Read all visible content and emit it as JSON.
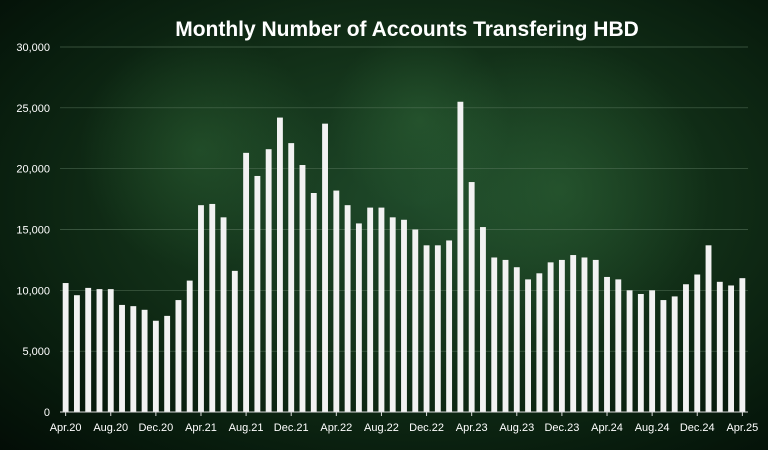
{
  "chart_data": {
    "type": "bar",
    "title": "Monthly Number of Accounts Transfering HBD",
    "xlabel": "",
    "ylabel": "",
    "ylim": [
      0,
      30000
    ],
    "yticks": [
      0,
      5000,
      10000,
      15000,
      20000,
      25000,
      30000
    ],
    "ytick_labels": [
      "0",
      "5,000",
      "10,000",
      "15,000",
      "20,000",
      "25,000",
      "30,000"
    ],
    "grid": true,
    "bar_color": "#f2f2f2",
    "categories": [
      "Apr.20",
      "May.20",
      "Jun.20",
      "Jul.20",
      "Aug.20",
      "Sep.20",
      "Oct.20",
      "Nov.20",
      "Dec.20",
      "Jan.21",
      "Feb.21",
      "Mar.21",
      "Apr.21",
      "May.21",
      "Jun.21",
      "Jul.21",
      "Aug.21",
      "Sep.21",
      "Oct.21",
      "Nov.21",
      "Dec.21",
      "Jan.22",
      "Feb.22",
      "Mar.22",
      "Apr.22",
      "May.22",
      "Jun.22",
      "Jul.22",
      "Aug.22",
      "Sep.22",
      "Oct.22",
      "Nov.22",
      "Dec.22",
      "Jan.23",
      "Feb.23",
      "Mar.23",
      "Apr.23",
      "May.23",
      "Jun.23",
      "Jul.23",
      "Aug.23",
      "Sep.23",
      "Oct.23",
      "Nov.23",
      "Dec.23",
      "Jan.24",
      "Feb.24",
      "Mar.24",
      "Apr.24",
      "May.24",
      "Jun.24",
      "Jul.24",
      "Aug.24",
      "Sep.24",
      "Oct.24",
      "Nov.24",
      "Dec.24",
      "Jan.25",
      "Feb.25",
      "Mar.25",
      "Apr.25"
    ],
    "visible_xtick_labels": [
      "Apr.20",
      "Aug.20",
      "Dec.20",
      "Apr.21",
      "Aug.21",
      "Dec.21",
      "Apr.22",
      "Aug.22",
      "Dec.22",
      "Apr.23",
      "Aug.23",
      "Dec.23",
      "Apr.24",
      "Aug.24",
      "Dec.24",
      "Apr.25"
    ],
    "values": [
      10600,
      9600,
      10200,
      10100,
      10100,
      8800,
      8700,
      8400,
      7500,
      7900,
      9200,
      10800,
      17000,
      17100,
      16000,
      11600,
      21300,
      19400,
      21600,
      24200,
      22100,
      20300,
      18000,
      23700,
      18200,
      17000,
      15500,
      16800,
      16800,
      16000,
      15800,
      15000,
      13700,
      13700,
      14100,
      25500,
      18900,
      15200,
      12700,
      12500,
      11900,
      10900,
      11400,
      12300,
      12500,
      12900,
      12700,
      12500,
      11100,
      10900,
      10000,
      9700,
      10000,
      9200,
      9500,
      10500,
      11300,
      13700,
      10700,
      10400,
      11000
    ]
  }
}
